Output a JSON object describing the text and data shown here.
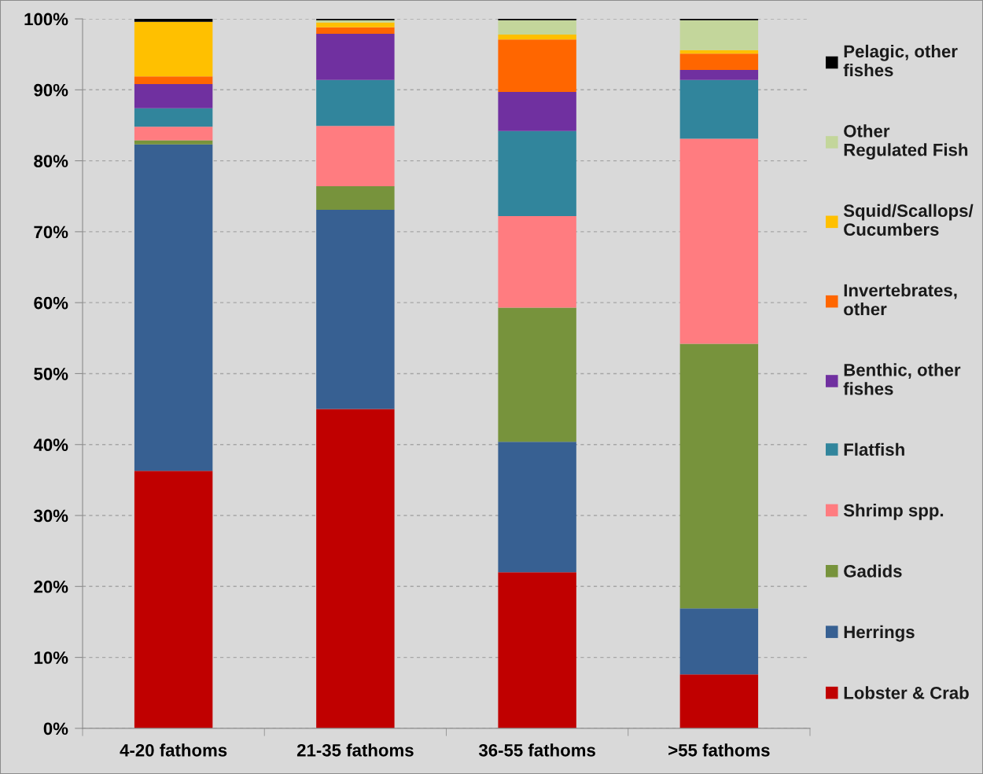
{
  "chart_data": {
    "type": "bar",
    "stacked": true,
    "categories": [
      "4-20 fathoms",
      "21-35 fathoms",
      "36-55 fathoms",
      ">55 fathoms"
    ],
    "series": [
      {
        "name": "Lobster & Crab",
        "color": "#c00000",
        "values": [
          36.3,
          45.0,
          22.0,
          7.6
        ]
      },
      {
        "name": "Herrings",
        "color": "#376092",
        "values": [
          46.0,
          28.1,
          18.4,
          9.3
        ]
      },
      {
        "name": "Gadids",
        "color": "#77933c",
        "values": [
          0.6,
          3.3,
          18.9,
          37.3
        ]
      },
      {
        "name": "Shrimp spp.",
        "color": "#ff7c80",
        "values": [
          1.9,
          8.5,
          12.9,
          28.9
        ]
      },
      {
        "name": "Flatfish",
        "color": "#31859c",
        "values": [
          2.6,
          6.5,
          12.0,
          8.3
        ]
      },
      {
        "name": "Benthic, other\nfishes",
        "color": "#7030a0",
        "values": [
          3.4,
          6.5,
          5.5,
          1.4
        ]
      },
      {
        "name": "Invertebrates,\nother",
        "color": "#ff6600",
        "values": [
          1.1,
          0.9,
          7.4,
          2.3
        ]
      },
      {
        "name": "Squid/Scallops/\nCucumbers",
        "color": "#ffc000",
        "values": [
          7.7,
          0.7,
          0.7,
          0.5
        ]
      },
      {
        "name": "Other\nRegulated Fish",
        "color": "#c3d69b",
        "values": [
          0.0,
          0.3,
          2.0,
          4.2
        ]
      },
      {
        "name": "Pelagic, other\nfishes",
        "color": "#000000",
        "values": [
          0.4,
          0.2,
          0.2,
          0.2
        ]
      }
    ],
    "ylim": [
      0,
      100
    ],
    "yticks": [
      {
        "value": 0,
        "label": "0%"
      },
      {
        "value": 10,
        "label": "10%"
      },
      {
        "value": 20,
        "label": "20%"
      },
      {
        "value": 30,
        "label": "30%"
      },
      {
        "value": 40,
        "label": "40%"
      },
      {
        "value": 50,
        "label": "50%"
      },
      {
        "value": 60,
        "label": "60%"
      },
      {
        "value": 70,
        "label": "70%"
      },
      {
        "value": 80,
        "label": "80%"
      },
      {
        "value": 90,
        "label": "90%"
      },
      {
        "value": 100,
        "label": "100%"
      }
    ],
    "grid": "y",
    "legend": "right"
  }
}
